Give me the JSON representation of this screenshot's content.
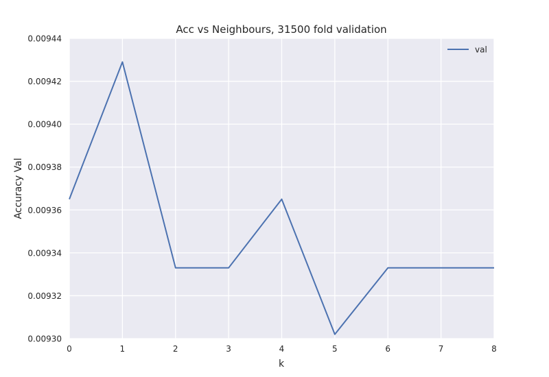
{
  "chart_data": {
    "type": "line",
    "title": "Acc vs Neighbours, 31500 fold validation",
    "xlabel": "k",
    "ylabel": "Accuracy Val",
    "x": [
      0,
      1,
      2,
      3,
      4,
      5,
      6,
      7,
      8
    ],
    "x_ticks": [
      "0",
      "1",
      "2",
      "3",
      "4",
      "5",
      "6",
      "7",
      "8"
    ],
    "y_ticks": [
      "0.00930",
      "0.00932",
      "0.00934",
      "0.00936",
      "0.00938",
      "0.00940",
      "0.00942",
      "0.00944"
    ],
    "xlim": [
      0,
      8
    ],
    "ylim": [
      0.0093,
      0.00944
    ],
    "grid": true,
    "legend_position": "top-right",
    "series": [
      {
        "name": "val",
        "color": "#4c72b0",
        "values": [
          0.009365,
          0.009429,
          0.009333,
          0.009333,
          0.009365,
          0.009302,
          0.009333,
          0.009333,
          0.009333
        ]
      }
    ]
  },
  "colors": {
    "plot_background": "#eaeaf2",
    "grid": "#ffffff"
  }
}
